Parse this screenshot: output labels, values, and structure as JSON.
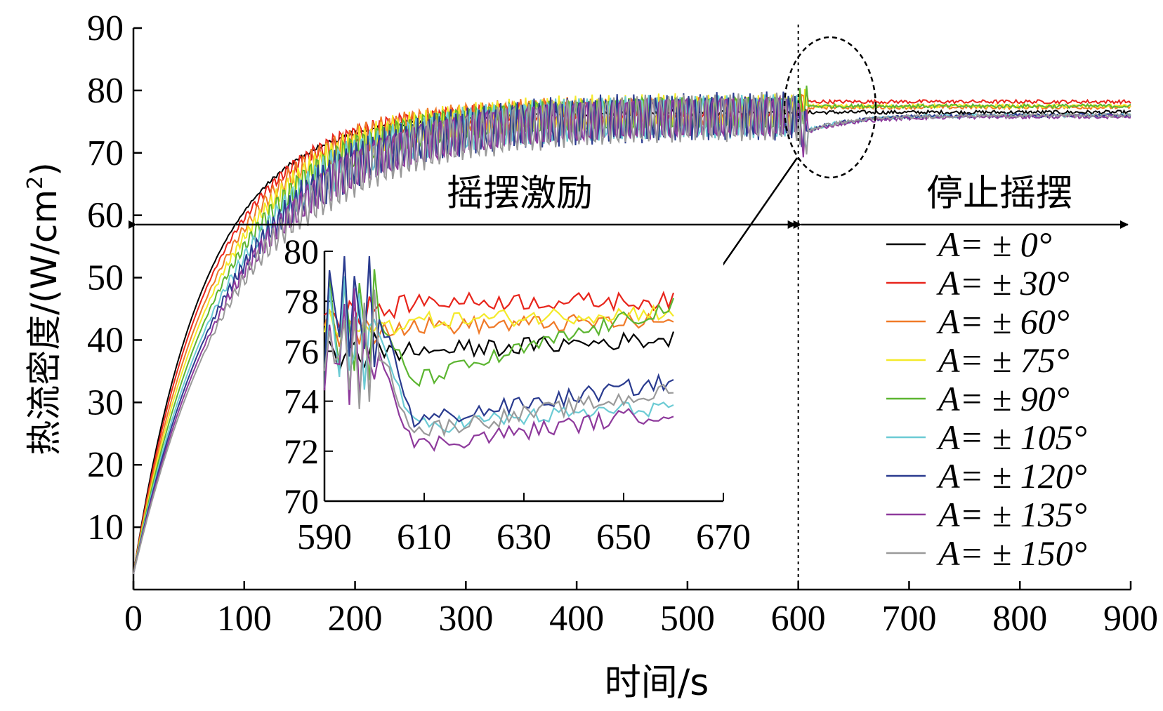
{
  "chart_data": [
    {
      "type": "line",
      "xlabel": "时间/s",
      "ylabel": "热流密度/(W/cm",
      "ylabel_sup": "2",
      "ylabel_close": ")",
      "xlim": [
        0,
        900
      ],
      "ylim": [
        0,
        90
      ],
      "xticks": [
        0,
        100,
        200,
        300,
        400,
        500,
        600,
        700,
        800,
        900
      ],
      "yticks": [
        10,
        20,
        30,
        40,
        50,
        60,
        70,
        80,
        90
      ],
      "xtick_labels": [
        "0",
        "100",
        "200",
        "300",
        "400",
        "500",
        "600",
        "700",
        "800",
        "900"
      ],
      "ytick_labels": [
        "10",
        "20",
        "30",
        "40",
        "50",
        "60",
        "70",
        "80",
        "90"
      ],
      "annotations": {
        "swing_region": "摇摆激励",
        "stop_region": "停止摇摆",
        "divider_x": 600
      },
      "series": [
        {
          "name": "A= ± 0°",
          "amplitude_deg": 0,
          "plateau_swing": 76.5,
          "final": 76.5,
          "color": "#000000"
        },
        {
          "name": "A= ± 30°",
          "amplitude_deg": 30,
          "plateau_swing": 77.0,
          "final": 78.2,
          "color": "#e8251c"
        },
        {
          "name": "A= ± 60°",
          "amplitude_deg": 60,
          "plateau_swing": 76.8,
          "final": 77.3,
          "color": "#f07a28"
        },
        {
          "name": "A= ± 75°",
          "amplitude_deg": 75,
          "plateau_swing": 76.8,
          "final": 77.5,
          "color": "#f4ea2a"
        },
        {
          "name": "A= ± 90°",
          "amplitude_deg": 90,
          "plateau_swing": 76.5,
          "final": 77.5,
          "color": "#5cb531"
        },
        {
          "name": "A= ± 105°",
          "amplitude_deg": 105,
          "plateau_swing": 76.0,
          "final": 76.0,
          "color": "#6ccbd4"
        },
        {
          "name": "A= ± 120°",
          "amplitude_deg": 120,
          "plateau_swing": 76.0,
          "final": 76.0,
          "color": "#2a3b8f"
        },
        {
          "name": "A= ± 135°",
          "amplitude_deg": 135,
          "plateau_swing": 76.0,
          "final": 75.8,
          "color": "#8e3a9c"
        },
        {
          "name": "A= ± 150°",
          "amplitude_deg": 150,
          "plateau_swing": 76.0,
          "final": 76.0,
          "color": "#9a9a9a"
        }
      ]
    },
    {
      "type": "line",
      "role": "inset",
      "xlim": [
        590,
        670
      ],
      "ylim": [
        70,
        80
      ],
      "xticks": [
        590,
        610,
        630,
        650,
        670
      ],
      "yticks": [
        70,
        72,
        74,
        76,
        78,
        80
      ],
      "xtick_labels": [
        "590",
        "610",
        "630",
        "650",
        "670"
      ],
      "ytick_labels": [
        "70",
        "72",
        "74",
        "76",
        "78",
        "80"
      ],
      "x_end": 660,
      "series": [
        {
          "name": "A= ± 0°",
          "start": 76.0,
          "settle": 76.0,
          "final": 76.5,
          "color": "#000000"
        },
        {
          "name": "A= ± 30°",
          "start": 77.5,
          "settle": 78.0,
          "final": 78.0,
          "color": "#e8251c"
        },
        {
          "name": "A= ± 60°",
          "start": 77.0,
          "settle": 77.0,
          "final": 77.2,
          "color": "#f07a28"
        },
        {
          "name": "A= ± 75°",
          "start": 77.0,
          "settle": 77.2,
          "final": 77.6,
          "color": "#f4ea2a"
        },
        {
          "name": "A= ± 90°",
          "start": 77.0,
          "settle": 74.8,
          "final": 77.8,
          "color": "#5cb531"
        },
        {
          "name": "A= ± 105°",
          "start": 76.5,
          "settle": 73.0,
          "final": 73.8,
          "color": "#6ccbd4"
        },
        {
          "name": "A= ± 120°",
          "start": 77.5,
          "settle": 73.2,
          "final": 74.8,
          "color": "#2a3b8f"
        },
        {
          "name": "A= ± 135°",
          "start": 76.0,
          "settle": 72.2,
          "final": 73.6,
          "color": "#8e3a9c"
        },
        {
          "name": "A= ± 150°",
          "start": 76.0,
          "settle": 72.8,
          "final": 74.4,
          "color": "#9a9a9a"
        }
      ]
    }
  ]
}
